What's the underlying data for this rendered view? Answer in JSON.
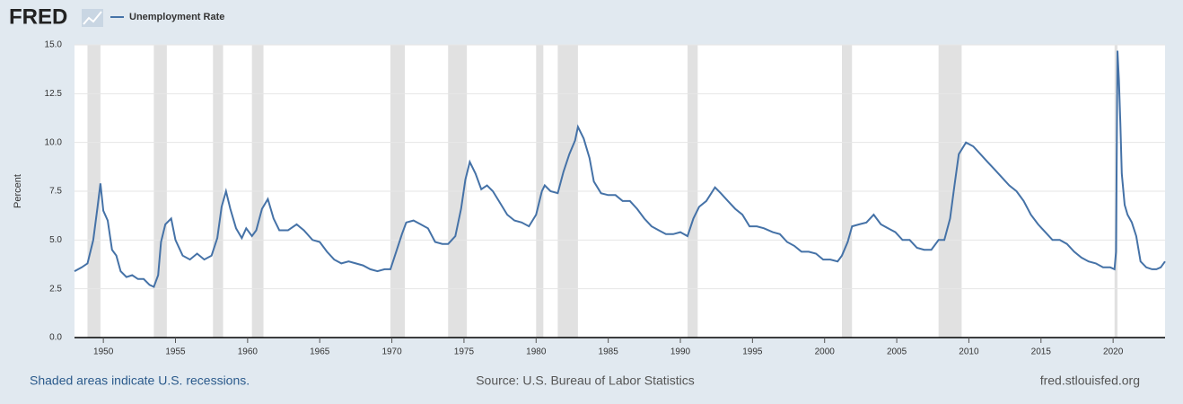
{
  "chart_data": {
    "type": "line",
    "brand": "FRED",
    "ylabel": "Percent",
    "note": "Shaded areas indicate U.S. recessions.",
    "source": "Source: U.S. Bureau of Labor Statistics",
    "site": "fred.stlouisfed.org",
    "xlim": [
      1948.0,
      2023.6
    ],
    "xticks": [
      1950,
      1955,
      1960,
      1965,
      1970,
      1975,
      1980,
      1985,
      1990,
      1995,
      2000,
      2005,
      2010,
      2015,
      2020
    ],
    "ylim": [
      0,
      15
    ],
    "yticks": [
      {
        "value": 0,
        "label": "0.0"
      },
      2.5,
      {
        "value": 5,
        "label": "5.0"
      },
      7.5,
      {
        "value": 10,
        "label": "10.0"
      },
      12.5,
      {
        "value": 15,
        "label": "15.0"
      }
    ],
    "grid": true,
    "recessions": [
      [
        1948.9,
        1949.8
      ],
      [
        1953.5,
        1954.4
      ],
      [
        1957.6,
        1958.3
      ],
      [
        1960.3,
        1961.1
      ],
      [
        1969.9,
        1970.9
      ],
      [
        1973.9,
        1975.2
      ],
      [
        1980.0,
        1980.5
      ],
      [
        1981.5,
        1982.9
      ],
      [
        1990.5,
        1991.2
      ],
      [
        2001.2,
        2001.9
      ],
      [
        2007.9,
        2009.5
      ],
      [
        2020.1,
        2020.3
      ]
    ],
    "recession_color": "#e1e1e1",
    "x": [
      1948.0,
      1948.5,
      1948.9,
      1949.3,
      1949.6,
      1949.8,
      1950.0,
      1950.3,
      1950.6,
      1950.9,
      1951.2,
      1951.6,
      1952.0,
      1952.4,
      1952.8,
      1953.2,
      1953.5,
      1953.8,
      1954.0,
      1954.3,
      1954.7,
      1955.0,
      1955.5,
      1956.0,
      1956.5,
      1957.0,
      1957.5,
      1957.9,
      1958.2,
      1958.5,
      1958.8,
      1959.2,
      1959.6,
      1959.9,
      1960.3,
      1960.6,
      1961.0,
      1961.4,
      1961.8,
      1962.2,
      1962.8,
      1963.4,
      1963.9,
      1964.5,
      1965.0,
      1965.5,
      1966.0,
      1966.5,
      1967.0,
      1967.5,
      1968.0,
      1968.5,
      1969.0,
      1969.5,
      1969.9,
      1970.3,
      1970.7,
      1971.0,
      1971.5,
      1972.0,
      1972.5,
      1973.0,
      1973.5,
      1973.9,
      1974.4,
      1974.8,
      1975.1,
      1975.4,
      1975.8,
      1976.2,
      1976.6,
      1977.0,
      1977.5,
      1978.0,
      1978.5,
      1979.0,
      1979.5,
      1980.0,
      1980.4,
      1980.6,
      1981.0,
      1981.5,
      1981.9,
      1982.3,
      1982.7,
      1982.9,
      1983.3,
      1983.7,
      1984.0,
      1984.5,
      1985.0,
      1985.5,
      1986.0,
      1986.5,
      1987.0,
      1987.5,
      1988.0,
      1988.5,
      1989.0,
      1989.5,
      1990.0,
      1990.5,
      1990.9,
      1991.3,
      1991.8,
      1992.4,
      1992.8,
      1993.3,
      1993.8,
      1994.3,
      1994.8,
      1995.3,
      1995.8,
      1996.4,
      1996.9,
      1997.4,
      1997.9,
      1998.4,
      1998.9,
      1999.4,
      1999.9,
      2000.4,
      2000.9,
      2001.2,
      2001.6,
      2001.9,
      2002.4,
      2002.9,
      2003.4,
      2003.9,
      2004.4,
      2004.9,
      2005.4,
      2005.9,
      2006.4,
      2006.9,
      2007.4,
      2007.9,
      2008.3,
      2008.7,
      2009.0,
      2009.3,
      2009.8,
      2010.3,
      2010.8,
      2011.3,
      2011.8,
      2012.3,
      2012.8,
      2013.3,
      2013.8,
      2014.3,
      2014.8,
      2015.3,
      2015.8,
      2016.3,
      2016.8,
      2017.3,
      2017.8,
      2018.3,
      2018.8,
      2019.3,
      2019.8,
      2020.1,
      2020.2,
      2020.3,
      2020.4,
      2020.5,
      2020.6,
      2020.8,
      2021.0,
      2021.3,
      2021.6,
      2021.9,
      2022.3,
      2022.7,
      2023.0,
      2023.3,
      2023.6
    ],
    "series": [
      {
        "name": "Unemployment Rate",
        "color": "#4572a7",
        "values": [
          3.4,
          3.6,
          3.8,
          5.0,
          6.7,
          7.9,
          6.5,
          6.0,
          4.5,
          4.2,
          3.4,
          3.1,
          3.2,
          3.0,
          3.0,
          2.7,
          2.6,
          3.2,
          4.9,
          5.8,
          6.1,
          5.0,
          4.2,
          4.0,
          4.3,
          4.0,
          4.2,
          5.1,
          6.7,
          7.5,
          6.6,
          5.6,
          5.1,
          5.6,
          5.2,
          5.5,
          6.6,
          7.1,
          6.1,
          5.5,
          5.5,
          5.8,
          5.5,
          5.0,
          4.9,
          4.4,
          4.0,
          3.8,
          3.9,
          3.8,
          3.7,
          3.5,
          3.4,
          3.5,
          3.5,
          4.4,
          5.3,
          5.9,
          6.0,
          5.8,
          5.6,
          4.9,
          4.8,
          4.8,
          5.2,
          6.6,
          8.1,
          9.0,
          8.4,
          7.6,
          7.8,
          7.5,
          6.9,
          6.3,
          6.0,
          5.9,
          5.7,
          6.3,
          7.5,
          7.8,
          7.5,
          7.4,
          8.5,
          9.4,
          10.1,
          10.8,
          10.2,
          9.2,
          8.0,
          7.4,
          7.3,
          7.3,
          7.0,
          7.0,
          6.6,
          6.1,
          5.7,
          5.5,
          5.3,
          5.3,
          5.4,
          5.2,
          6.1,
          6.7,
          7.0,
          7.7,
          7.4,
          7.0,
          6.6,
          6.3,
          5.7,
          5.7,
          5.6,
          5.4,
          5.3,
          4.9,
          4.7,
          4.4,
          4.4,
          4.3,
          4.0,
          4.0,
          3.9,
          4.2,
          4.9,
          5.7,
          5.8,
          5.9,
          6.3,
          5.8,
          5.6,
          5.4,
          5.0,
          5.0,
          4.6,
          4.5,
          4.5,
          5.0,
          5.0,
          6.1,
          7.8,
          9.4,
          10.0,
          9.8,
          9.4,
          9.0,
          8.6,
          8.2,
          7.8,
          7.5,
          7.0,
          6.3,
          5.8,
          5.4,
          5.0,
          5.0,
          4.8,
          4.4,
          4.1,
          3.9,
          3.8,
          3.6,
          3.6,
          3.5,
          4.4,
          14.7,
          13.2,
          11.0,
          8.4,
          6.8,
          6.3,
          5.9,
          5.2,
          3.9,
          3.6,
          3.5,
          3.5,
          3.6,
          3.9
        ]
      }
    ]
  }
}
